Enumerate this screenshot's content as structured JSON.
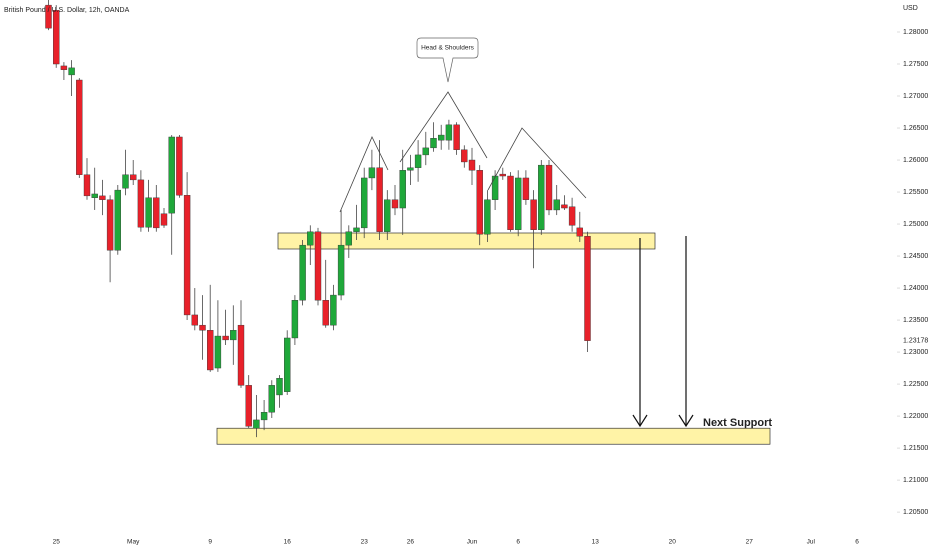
{
  "chart_data": {
    "type": "candlestick",
    "title": "British Pound / U.S. Dollar, 12h, OANDA",
    "currency_label": "USD",
    "annotation": "Head & Shoulders",
    "support_label": "Next Support",
    "up_color": "#1fa83a",
    "down_color": "#e8212a",
    "zone_color": "#fff3a6",
    "ylim": [
      1.2022,
      1.285
    ],
    "yticks": [
      {
        "value": 1.28,
        "label": "1.28000"
      },
      {
        "value": 1.275,
        "label": "1.27500"
      },
      {
        "value": 1.27,
        "label": "1.27000"
      },
      {
        "value": 1.265,
        "label": "1.26500"
      },
      {
        "value": 1.26,
        "label": "1.26000"
      },
      {
        "value": 1.255,
        "label": "1.25500"
      },
      {
        "value": 1.25,
        "label": "1.25000"
      },
      {
        "value": 1.245,
        "label": "1.24500"
      },
      {
        "value": 1.24,
        "label": "1.24000"
      },
      {
        "value": 1.235,
        "label": "1.23500"
      },
      {
        "value": 1.23,
        "label": "1.23000"
      },
      {
        "value": 1.225,
        "label": "1.22500"
      },
      {
        "value": 1.22,
        "label": "1.22000"
      },
      {
        "value": 1.215,
        "label": "1.21500"
      },
      {
        "value": 1.21,
        "label": "1.21000"
      },
      {
        "value": 1.205,
        "label": "1.20500"
      }
    ],
    "last_price": 1.23178,
    "zones": [
      {
        "low": 1.2461,
        "high": 1.2486
      },
      {
        "low": 1.2156,
        "high": 1.2181
      }
    ],
    "categories": [
      null,
      "25",
      null,
      null,
      null,
      null,
      null,
      null,
      null,
      null,
      null,
      "May",
      null,
      null,
      null,
      null,
      null,
      null,
      null,
      null,
      null,
      "9",
      null,
      null,
      null,
      null,
      null,
      null,
      null,
      null,
      null,
      "16",
      null,
      null,
      null,
      null,
      null,
      null,
      null,
      null,
      null,
      "23",
      null,
      null,
      null,
      null,
      null,
      "26",
      null,
      null,
      null,
      null,
      null,
      null,
      null,
      "Jun",
      null,
      null,
      null,
      null,
      null,
      "6",
      null,
      null,
      null,
      null,
      null,
      null,
      null,
      null,
      null,
      "13",
      null,
      null,
      null,
      null,
      null,
      null,
      null,
      null,
      null,
      "20",
      null,
      null,
      null,
      null,
      null,
      null,
      null,
      null,
      null,
      "27",
      null,
      null,
      null,
      null,
      null,
      null,
      null,
      "Jul",
      null,
      null,
      null,
      null,
      null,
      "6"
    ],
    "open": [
      1.2842,
      1.2834,
      1.2747,
      1.2733,
      1.2725,
      1.2577,
      1.2541,
      1.2544,
      1.2538,
      1.2459,
      1.2556,
      1.2577,
      1.2569,
      1.2495,
      1.2541,
      1.2516,
      1.2517,
      1.2636,
      1.2545,
      1.2358,
      1.2342,
      1.2334,
      1.2275,
      1.2325,
      1.2319,
      1.2342,
      1.2248,
      1.2181,
      1.2194,
      1.2206,
      1.2233,
      1.2238,
      1.2322,
      1.2381,
      1.2467,
      1.2488,
      1.2381,
      1.2342,
      1.2389,
      1.2467,
      1.2488,
      1.2494,
      1.2572,
      1.2588,
      1.2488,
      1.2538,
      1.2525,
      1.2584,
      1.2588,
      1.2608,
      1.2619,
      1.2631,
      1.2631,
      1.2655,
      1.2616,
      1.26,
      1.2584,
      1.2484,
      1.2538,
      1.2578,
      1.2575,
      1.2491,
      1.2572,
      1.2538,
      1.2491,
      1.2592,
      1.2522,
      1.253,
      1.2527,
      1.2494,
      1.2481,
      null,
      null,
      null,
      null,
      null,
      null,
      null,
      null,
      null,
      null,
      null,
      null,
      null,
      null,
      null,
      null,
      null,
      null,
      null,
      null,
      null,
      null,
      null,
      null,
      null,
      null,
      null,
      null,
      null,
      null,
      null,
      null,
      null,
      null,
      null
    ],
    "high": [
      1.285,
      1.2842,
      1.2753,
      1.2756,
      1.2728,
      1.2603,
      1.2588,
      1.2569,
      1.2545,
      1.2561,
      1.2616,
      1.26,
      1.2584,
      1.2569,
      1.2561,
      1.2525,
      1.2639,
      1.2639,
      1.2581,
      1.24,
      1.2389,
      1.2405,
      1.2381,
      1.2366,
      1.2373,
      1.2381,
      1.2264,
      1.2233,
      1.2225,
      1.2256,
      1.2264,
      1.2334,
      1.2389,
      1.2475,
      1.2498,
      1.2494,
      1.2444,
      1.2405,
      1.2522,
      1.2498,
      1.253,
      1.2588,
      1.2616,
      1.2631,
      1.2553,
      1.2561,
      1.2616,
      1.2608,
      1.2631,
      1.2644,
      1.2659,
      1.2655,
      1.2663,
      1.2659,
      1.2623,
      1.2619,
      1.2592,
      1.2553,
      1.2584,
      1.2588,
      1.2581,
      1.2584,
      1.2584,
      1.2553,
      1.26,
      1.26,
      1.2561,
      1.2545,
      1.2541,
      1.2519,
      1.2488,
      null,
      null,
      null,
      null,
      null,
      null,
      null,
      null,
      null,
      null,
      null,
      null,
      null,
      null,
      null,
      null,
      null,
      null,
      null,
      null,
      null,
      null,
      null,
      null,
      null,
      null,
      null,
      null,
      null,
      null,
      null,
      null,
      null,
      null,
      null
    ],
    "low": [
      1.2803,
      1.2744,
      1.2725,
      1.27,
      1.2572,
      1.2538,
      1.2522,
      1.2514,
      1.2409,
      1.2452,
      1.2545,
      1.2561,
      1.2488,
      1.2488,
      1.2488,
      1.2494,
      1.2452,
      1.2541,
      1.235,
      1.2334,
      1.2288,
      1.2269,
      1.2269,
      1.2311,
      1.228,
      1.2244,
      1.2181,
      1.2167,
      1.2178,
      1.2197,
      1.2213,
      1.2233,
      1.2311,
      1.2373,
      1.2436,
      1.2373,
      1.2338,
      1.2334,
      1.2381,
      1.2447,
      1.2475,
      1.2478,
      1.2553,
      1.2475,
      1.2475,
      1.2514,
      1.2483,
      1.2561,
      1.2566,
      1.2592,
      1.2613,
      1.2616,
      1.2616,
      1.2608,
      1.2588,
      1.2561,
      1.2467,
      1.2472,
      1.2522,
      1.2569,
      1.2488,
      1.2481,
      1.253,
      1.2431,
      1.2483,
      1.2514,
      1.2514,
      1.2522,
      1.2488,
      1.2472,
      1.23,
      null,
      null,
      null,
      null,
      null,
      null,
      null,
      null,
      null,
      null,
      null,
      null,
      null,
      null,
      null,
      null,
      null,
      null,
      null,
      null,
      null,
      null,
      null,
      null,
      null,
      null,
      null,
      null,
      null,
      null,
      null,
      null,
      null,
      null,
      null
    ],
    "close": [
      1.2806,
      1.275,
      1.2741,
      1.2744,
      1.2577,
      1.2544,
      1.2547,
      1.2538,
      1.2459,
      1.2553,
      1.2577,
      1.2569,
      1.2495,
      1.2541,
      1.2494,
      1.2498,
      1.2636,
      1.2545,
      1.2358,
      1.2342,
      1.2334,
      1.2272,
      1.2325,
      1.2319,
      1.2334,
      1.2248,
      1.2184,
      1.2194,
      1.2206,
      1.2248,
      1.2259,
      1.2322,
      1.2381,
      1.2467,
      1.2488,
      1.2381,
      1.2342,
      1.2389,
      1.2467,
      1.2488,
      1.2494,
      1.2572,
      1.2588,
      1.2488,
      1.2538,
      1.2525,
      1.2584,
      1.2588,
      1.2608,
      1.2619,
      1.2634,
      1.2639,
      1.2655,
      1.2616,
      1.2597,
      1.2584,
      1.2484,
      1.2538,
      1.2575,
      1.2575,
      1.2491,
      1.2572,
      1.2538,
      1.2491,
      1.2592,
      1.2522,
      1.2538,
      1.2525,
      1.2498,
      1.2481,
      1.23178,
      null,
      null,
      null,
      null,
      null,
      null,
      null,
      null,
      null,
      null,
      null,
      null,
      null,
      null,
      null,
      null,
      null,
      null,
      null,
      null,
      null,
      null,
      null,
      null,
      null,
      null,
      null,
      null,
      null,
      null,
      null,
      null,
      null,
      null,
      null
    ]
  }
}
